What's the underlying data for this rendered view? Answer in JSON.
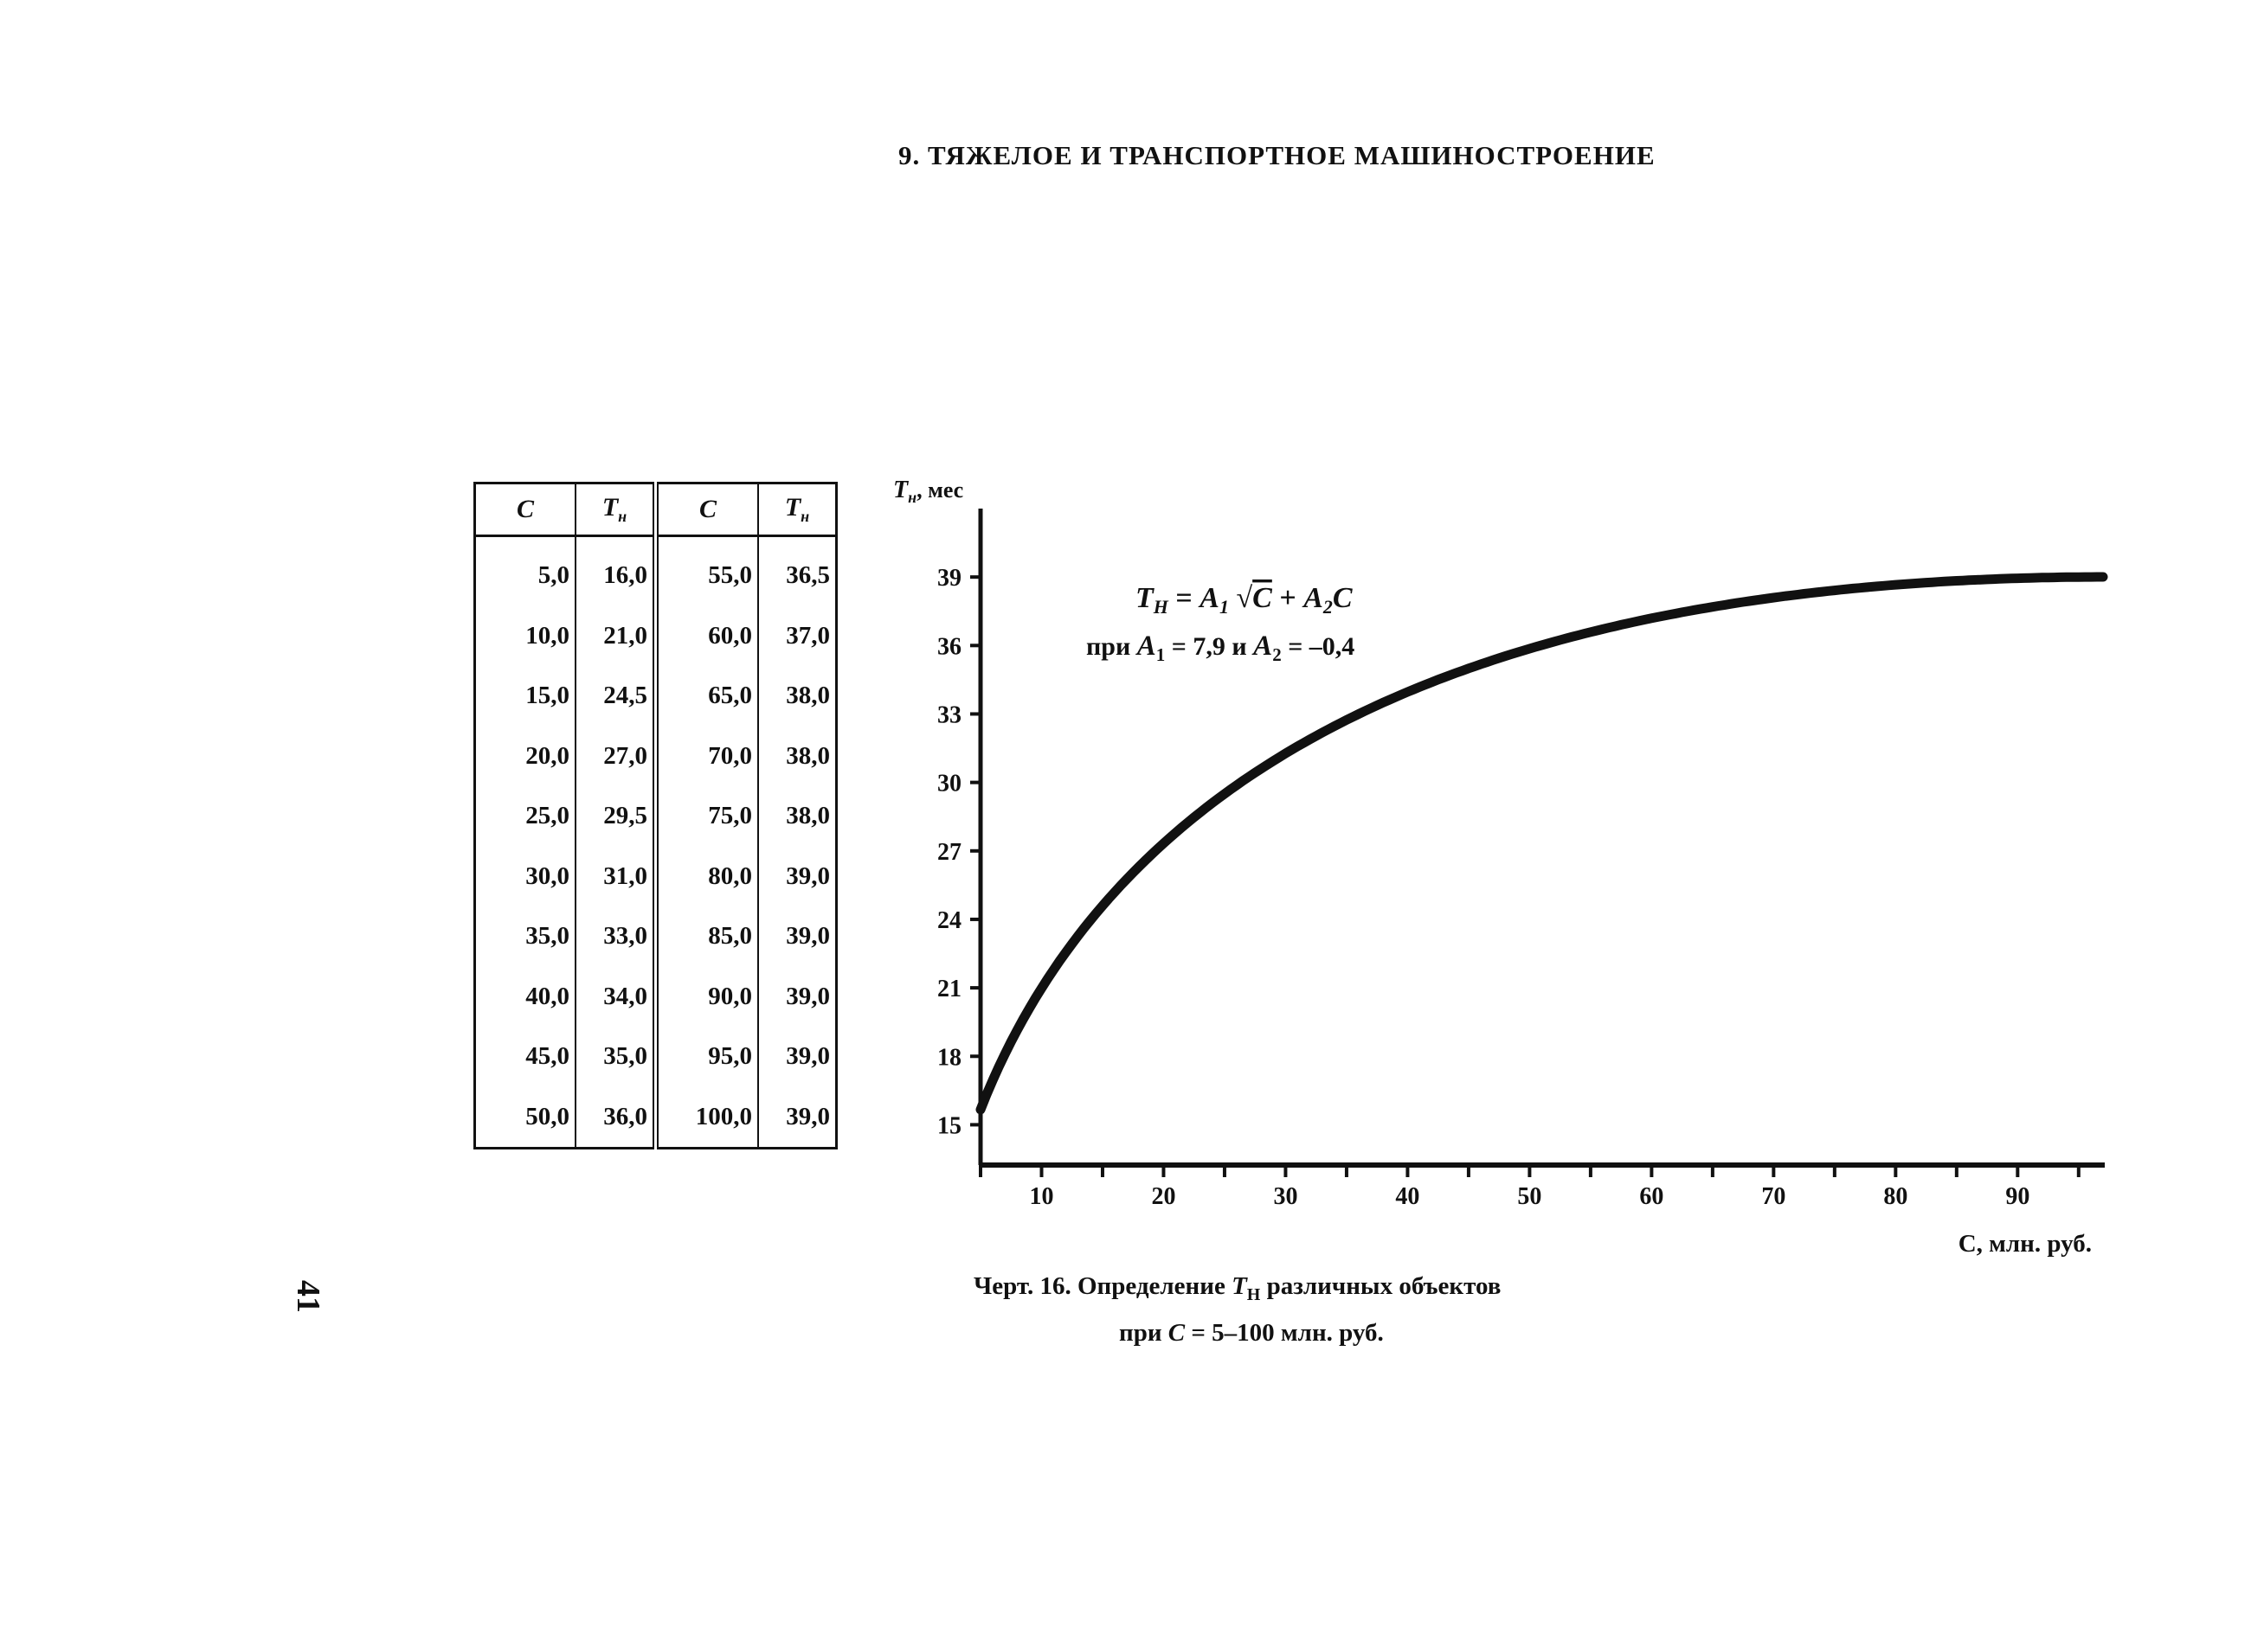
{
  "section_title": "9. ТЯЖЕЛОЕ И ТРАНСПОРТНОЕ МАШИНОСТРОЕНИЕ",
  "table": {
    "headers": [
      {
        "main": "C",
        "sub": ""
      },
      {
        "main": "T",
        "sub": "н"
      },
      {
        "main": "C",
        "sub": ""
      },
      {
        "main": "T",
        "sub": "н"
      }
    ],
    "rows": [
      [
        "5,0",
        "16,0",
        "55,0",
        "36,5"
      ],
      [
        "10,0",
        "21,0",
        "60,0",
        "37,0"
      ],
      [
        "15,0",
        "24,5",
        "65,0",
        "38,0"
      ],
      [
        "20,0",
        "27,0",
        "70,0",
        "38,0"
      ],
      [
        "25,0",
        "29,5",
        "75,0",
        "38,0"
      ],
      [
        "30,0",
        "31,0",
        "80,0",
        "39,0"
      ],
      [
        "35,0",
        "33,0",
        "85,0",
        "39,0"
      ],
      [
        "40,0",
        "34,0",
        "90,0",
        "39,0"
      ],
      [
        "45,0",
        "35,0",
        "95,0",
        "39,0"
      ],
      [
        "50,0",
        "36,0",
        "100,0",
        "39,0"
      ]
    ]
  },
  "chart_data": {
    "type": "line",
    "ylabel_main": "T",
    "ylabel_sub": "н",
    "ylabel_unit": ", мес",
    "xlabel": "C, млн. руб.",
    "y_ticks": [
      15,
      18,
      21,
      24,
      27,
      30,
      33,
      36,
      39
    ],
    "x_ticks": [
      10,
      20,
      30,
      40,
      50,
      60,
      70,
      80,
      90
    ],
    "xlim": [
      5,
      97
    ],
    "ylim": [
      13.5,
      42
    ],
    "formula": {
      "coef1": 7.9,
      "coef2": -0.4
    },
    "formula_line1_parts": {
      "t": "T",
      "t_sub": "Н",
      "eq": " = ",
      "a1": "A",
      "a1_sub": "1",
      "sqrt": " √",
      "c_over": "C",
      "plus": " + ",
      "a2": "A",
      "a2_sub": "2",
      "c": "C"
    },
    "formula_line2_parts": {
      "pri": "при ",
      "a1": "A",
      "a1_sub": "1",
      "a1_val": " = 7,9 и ",
      "a2": "A",
      "a2_sub": "2",
      "a2_val": " = –0,4"
    },
    "grid": false,
    "legend": "none"
  },
  "caption": {
    "line1_a": "Черт. 16. Определение ",
    "line1_t": "T",
    "line1_sub": "Н",
    "line1_b": " различных объектов",
    "line2_a": "при ",
    "line2_c": "C",
    "line2_b": " = 5–100 млн. руб."
  },
  "page_number": "41"
}
